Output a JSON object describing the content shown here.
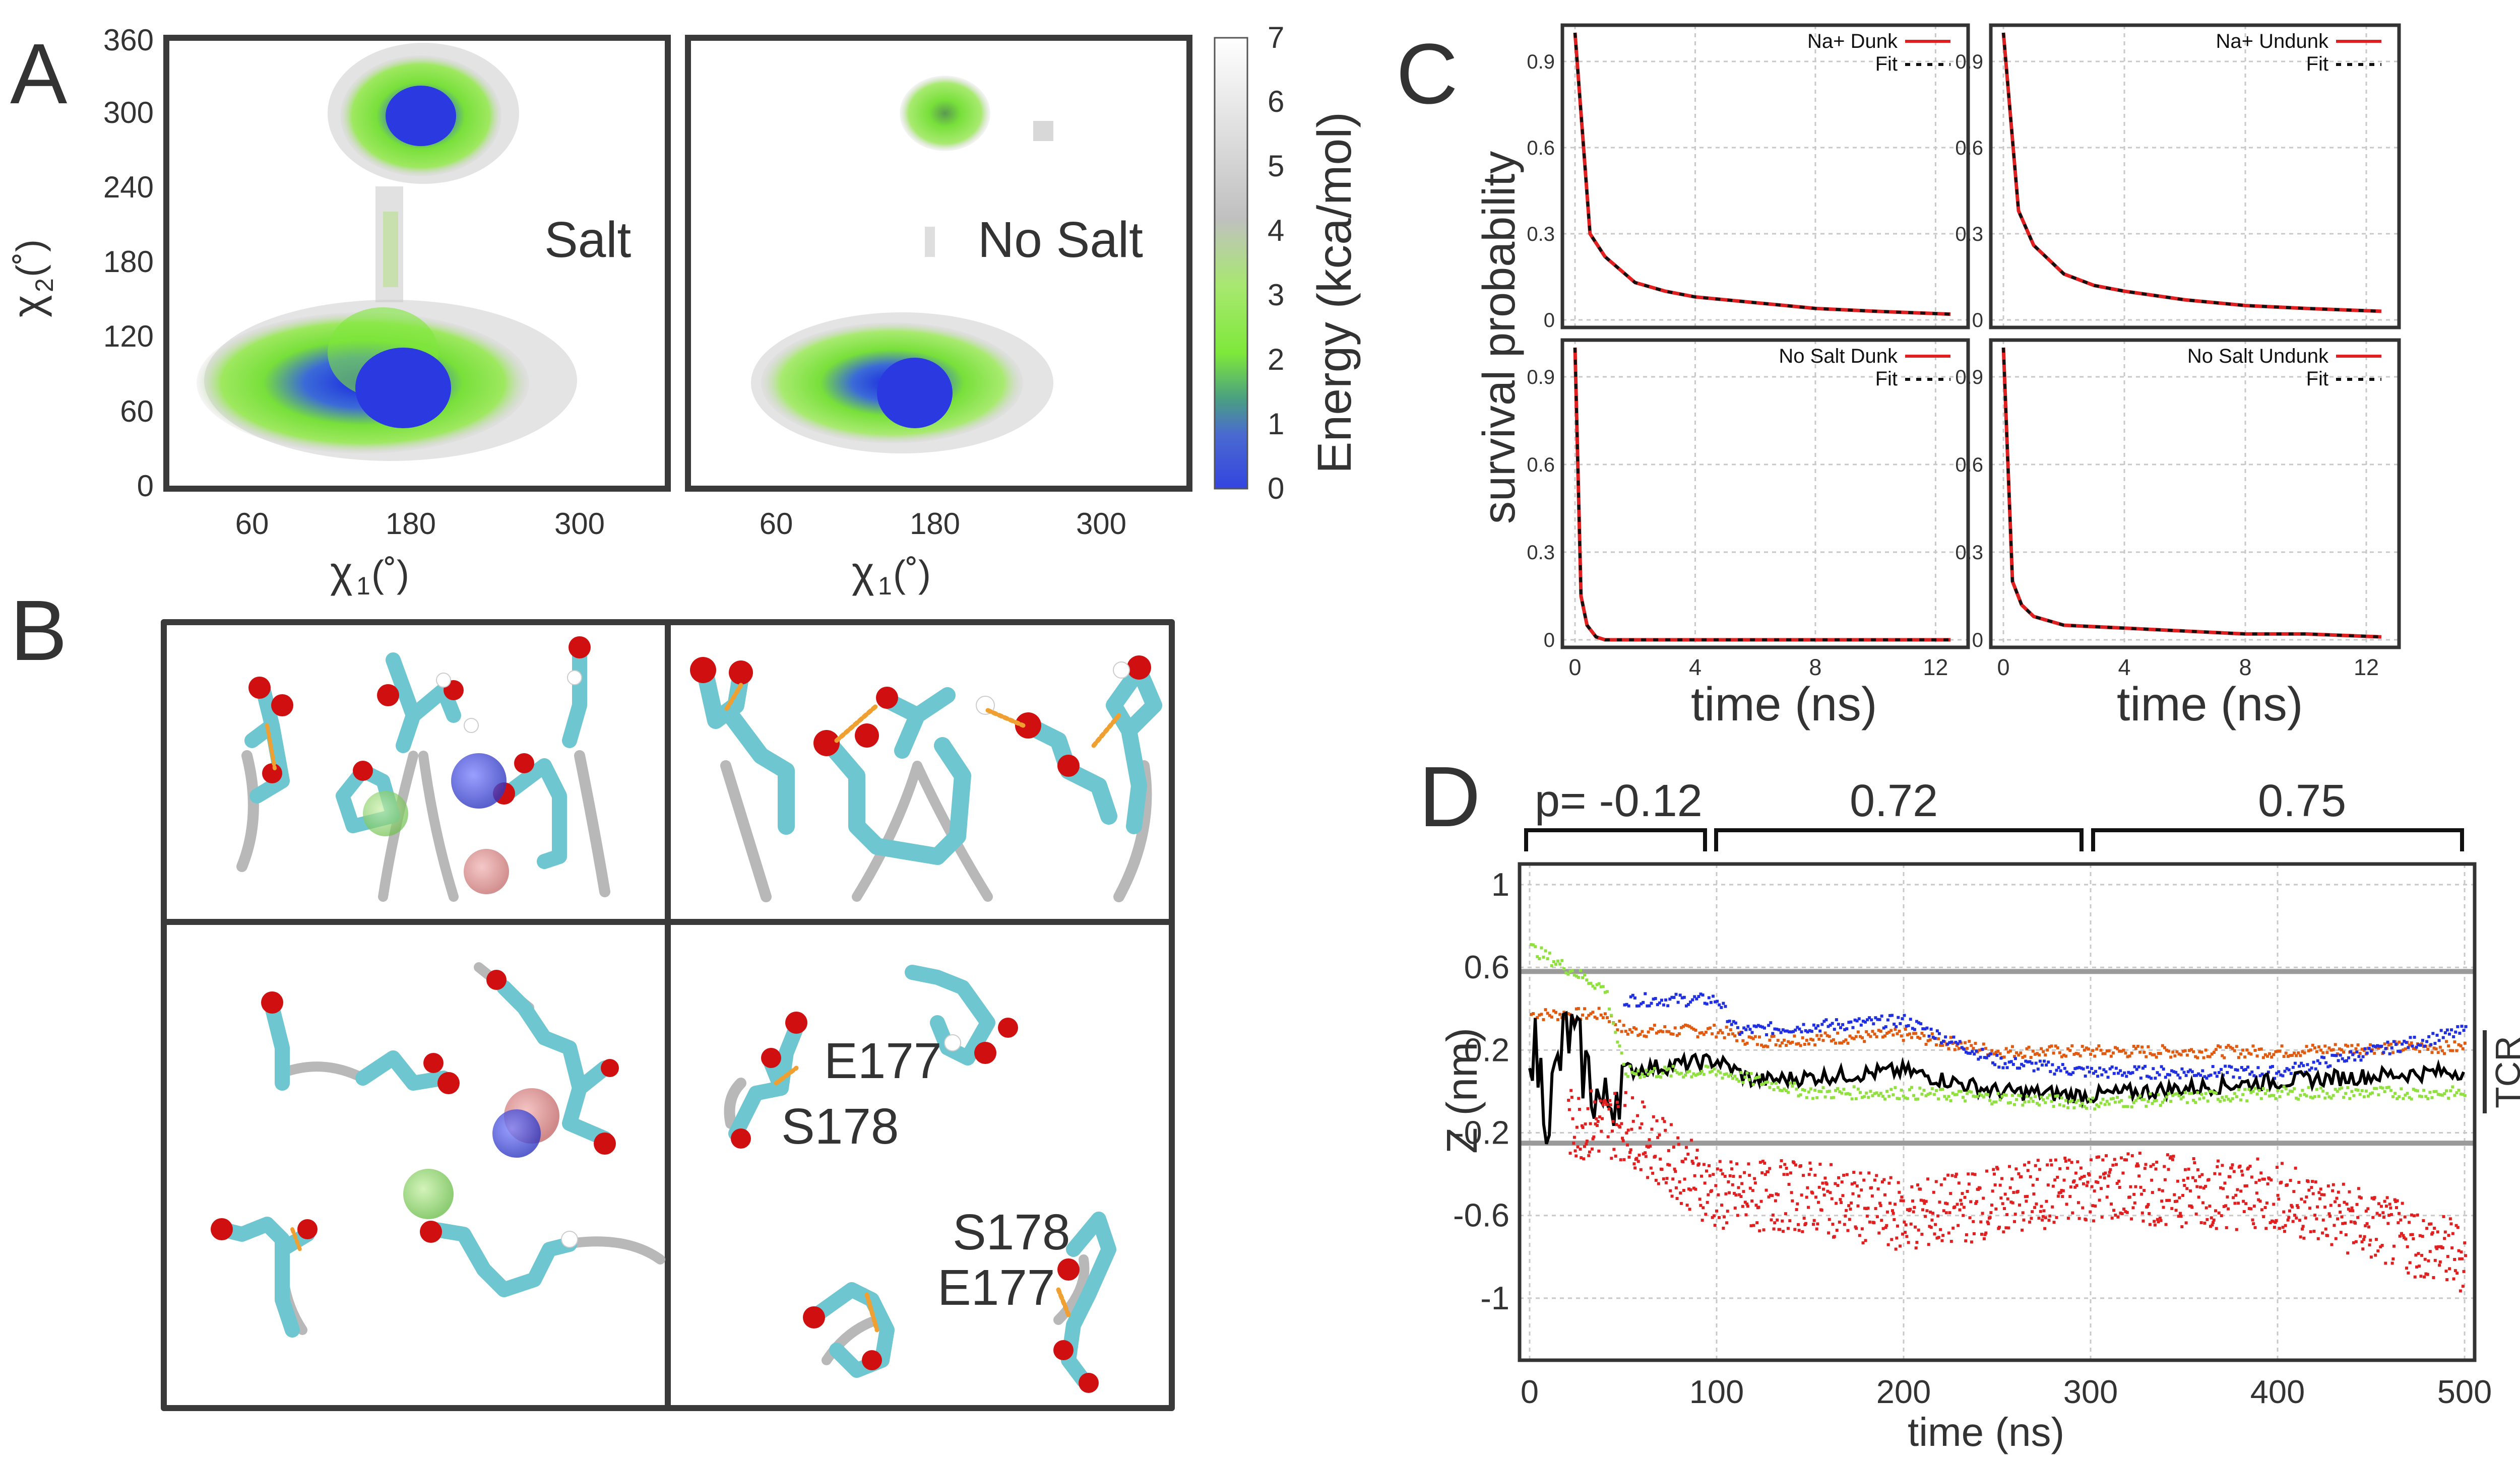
{
  "panel_letters": {
    "a": "A",
    "b": "B",
    "c": "C",
    "d": "D"
  },
  "panel_a": {
    "maps": [
      {
        "label": "Salt"
      },
      {
        "label": "No Salt"
      }
    ],
    "ylabel_main": "χ",
    "ylabel_sub": "2",
    "ylabel_unit": "(˚)",
    "xlabel_main": "χ",
    "xlabel_sub": "1",
    "xlabel_unit": "(˚)",
    "yticks": [
      "0",
      "60",
      "120",
      "180",
      "240",
      "300",
      "360"
    ],
    "xticks": [
      "60",
      "180",
      "300"
    ],
    "colorbar": {
      "label": "Energy (kca/mol)",
      "ticks": [
        "0",
        "1",
        "2",
        "3",
        "4",
        "5",
        "6",
        "7"
      ],
      "colors": {
        "blue": "#3344e0",
        "green": "#7ee83a",
        "gray": "#c8c8c8",
        "white": "#ffffff"
      }
    }
  },
  "panel_b": {
    "labels": {
      "e177_top": "E177",
      "s178_top": "S178",
      "s178_bottom": "S178",
      "e177_bottom": "E177"
    },
    "colors": {
      "carbon": "#6ec6d0",
      "oxygen": "#d01010",
      "hydrogen": "#ffffff",
      "backbone": "#b8b8b8",
      "hbond": "#f0a030",
      "na": "#5055e0",
      "cl": "#8fd870",
      "k": "#d08080"
    }
  },
  "panel_c": {
    "ylabel": "survival probability",
    "xlabel": "time (ns)",
    "yticks": [
      "0",
      "0.3",
      "0.6",
      "0.9"
    ],
    "xticks": [
      "0",
      "4",
      "8",
      "12"
    ],
    "chart_data": [
      {
        "type": "line",
        "title": "",
        "legend": [
          "Na+ Dunk",
          "Fit"
        ],
        "x": [
          0,
          0.5,
          1,
          2,
          3,
          4,
          6,
          8,
          10,
          12.5
        ],
        "y": [
          1.0,
          0.3,
          0.22,
          0.13,
          0.1,
          0.08,
          0.06,
          0.04,
          0.03,
          0.02
        ],
        "xlim": [
          0,
          13
        ],
        "ylim": [
          0,
          1
        ]
      },
      {
        "type": "line",
        "title": "",
        "legend": [
          "Na+ Undunk",
          "Fit"
        ],
        "x": [
          0,
          0.5,
          1,
          2,
          3,
          4,
          6,
          8,
          10,
          12.5
        ],
        "y": [
          1.0,
          0.38,
          0.26,
          0.16,
          0.12,
          0.1,
          0.07,
          0.05,
          0.04,
          0.03
        ],
        "xlim": [
          0,
          13
        ],
        "ylim": [
          0,
          1
        ]
      },
      {
        "type": "line",
        "title": "",
        "legend": [
          "No Salt Dunk",
          "Fit"
        ],
        "x": [
          0,
          0.2,
          0.4,
          0.7,
          1,
          12.5
        ],
        "y": [
          1.0,
          0.15,
          0.05,
          0.01,
          0.0,
          0.0
        ],
        "xlim": [
          0,
          13
        ],
        "ylim": [
          0,
          1
        ]
      },
      {
        "type": "line",
        "title": "",
        "legend": [
          "No Salt Undunk",
          "Fit"
        ],
        "x": [
          0,
          0.3,
          0.6,
          1,
          2,
          4,
          6,
          8,
          10,
          12.5
        ],
        "y": [
          1.0,
          0.2,
          0.12,
          0.08,
          0.05,
          0.04,
          0.03,
          0.02,
          0.02,
          0.01
        ],
        "xlim": [
          0,
          13
        ],
        "ylim": [
          0,
          1
        ]
      }
    ],
    "line_color": "#e02020"
  },
  "panel_d": {
    "brackets": [
      "p= -0.12",
      "0.72",
      "0.75"
    ],
    "ylabel": "Z (nm)",
    "xlabel": "time (ns)",
    "tcr": "TCR",
    "chart_data": {
      "type": "scatter",
      "xlim": [
        0,
        500
      ],
      "ylim": [
        -1.3,
        1.1
      ],
      "xticks": [
        "0",
        "100",
        "200",
        "300",
        "400",
        "500"
      ],
      "yticks": [
        "1",
        "0.6",
        "0.2",
        "-0.2",
        "-0.6",
        "-1"
      ],
      "reference_lines": [
        0.58,
        -0.25
      ],
      "series": [
        {
          "color": "#e05a10",
          "x": [
            0,
            40,
            50,
            100,
            120,
            200,
            250,
            300,
            400,
            450,
            500
          ],
          "y": [
            0.38,
            0.38,
            0.3,
            0.3,
            0.25,
            0.28,
            0.2,
            0.2,
            0.2,
            0.22,
            0.22
          ]
        },
        {
          "color": "#2030e0",
          "x": [
            50,
            100,
            110,
            200,
            250,
            300,
            400,
            450,
            500
          ],
          "y": [
            0.45,
            0.45,
            0.3,
            0.35,
            0.15,
            0.1,
            0.1,
            0.2,
            0.3
          ]
        },
        {
          "color": "#000000",
          "x": [
            0,
            10,
            20,
            40,
            50,
            100,
            120,
            200,
            250,
            300,
            400,
            500
          ],
          "y": [
            0.3,
            -0.1,
            0.3,
            -0.1,
            0.1,
            0.15,
            0.05,
            0.1,
            0.0,
            -0.02,
            0.05,
            0.1
          ]
        },
        {
          "color": "#90e040",
          "x": [
            0,
            20,
            40,
            50,
            100,
            150,
            200,
            300,
            400,
            500
          ],
          "y": [
            0.7,
            0.6,
            0.5,
            0.1,
            0.1,
            0.0,
            0.0,
            -0.05,
            0.0,
            0.0
          ]
        },
        {
          "color": "#e02020",
          "x": [
            20,
            50,
            100,
            150,
            200,
            300,
            400,
            500
          ],
          "y": [
            -0.15,
            -0.15,
            -0.5,
            -0.5,
            -0.6,
            -0.45,
            -0.5,
            -0.8
          ]
        }
      ]
    }
  }
}
